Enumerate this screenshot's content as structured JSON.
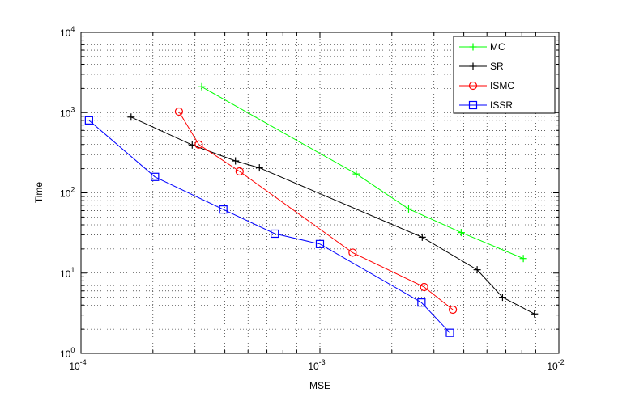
{
  "chart_data": {
    "type": "line",
    "xlabel": "MSE",
    "ylabel": "Time",
    "xscale": "log",
    "yscale": "log",
    "xlim": [
      0.0001,
      0.01
    ],
    "ylim": [
      1,
      10000
    ],
    "grid": true,
    "legend_position": "top-right",
    "x_ticks": [
      {
        "base": "10",
        "exp": "-4",
        "value": 0.0001
      },
      {
        "base": "10",
        "exp": "-3",
        "value": 0.001
      },
      {
        "base": "10",
        "exp": "-2",
        "value": 0.01
      }
    ],
    "y_ticks": [
      {
        "base": "10",
        "exp": "0",
        "value": 1
      },
      {
        "base": "10",
        "exp": "1",
        "value": 10
      },
      {
        "base": "10",
        "exp": "2",
        "value": 100
      },
      {
        "base": "10",
        "exp": "3",
        "value": 1000
      },
      {
        "base": "10",
        "exp": "4",
        "value": 10000
      }
    ],
    "series": [
      {
        "name": "MC",
        "color": "#00ff00",
        "marker": "plus",
        "points": [
          [
            0.00032,
            2100
          ],
          [
            0.00142,
            172
          ],
          [
            0.00235,
            63
          ],
          [
            0.0039,
            32
          ],
          [
            0.0071,
            15.2
          ]
        ]
      },
      {
        "name": "SR",
        "color": "#000000",
        "marker": "plus",
        "points": [
          [
            0.000162,
            880
          ],
          [
            0.000292,
            395
          ],
          [
            0.000443,
            250
          ],
          [
            0.000558,
            205
          ],
          [
            0.00268,
            28
          ],
          [
            0.00455,
            11
          ],
          [
            0.00581,
            5
          ],
          [
            0.0079,
            3.1
          ]
        ]
      },
      {
        "name": "ISMC",
        "color": "#ff0000",
        "marker": "circle",
        "points": [
          [
            0.000257,
            1030
          ],
          [
            0.000311,
            400
          ],
          [
            0.000461,
            185
          ],
          [
            0.00137,
            18
          ],
          [
            0.00273,
            6.7
          ],
          [
            0.0036,
            3.5
          ]
        ]
      },
      {
        "name": "ISSR",
        "color": "#0000ff",
        "marker": "square",
        "points": [
          [
            0.000108,
            800
          ],
          [
            0.000204,
            158
          ],
          [
            0.000394,
            62
          ],
          [
            0.000647,
            31
          ],
          [
            0.001,
            23
          ],
          [
            0.00266,
            4.3
          ],
          [
            0.0035,
            1.8
          ]
        ]
      }
    ]
  }
}
